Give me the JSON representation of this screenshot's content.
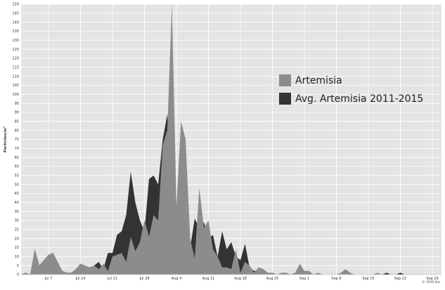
{
  "chart_data": {
    "type": "area",
    "ylabel": "Particles/m³",
    "ylim": [
      0,
      150
    ],
    "y_tick_step": 5,
    "grid": true,
    "legend_position": "right",
    "credit": "© 2016 Bai",
    "x_start": "Jul 1",
    "x_end": "Sep 30",
    "x_tick_labels": [
      "Jul 7",
      "Jul 14",
      "Jul 21",
      "Jul 28",
      "Aug 4",
      "Aug 11",
      "Aug 18",
      "Aug 25",
      "Sep 1",
      "Sep 8",
      "Sep 15",
      "Sep 22",
      "Sep 29"
    ],
    "x_tick_days": [
      6,
      13,
      20,
      27,
      34,
      41,
      48,
      55,
      62,
      69,
      76,
      83,
      90
    ],
    "categories_note": "x values are days in Jul 1 – Sep 30 (Jul 1 = 0)",
    "series": [
      {
        "name": "Avg. Artemisia 2011-2015",
        "color": "#333333",
        "x": [
          0,
          1,
          2,
          3,
          4,
          5,
          6,
          7,
          8,
          9,
          10,
          11,
          12,
          13,
          14,
          15,
          16,
          17,
          18,
          19,
          20,
          21,
          22,
          23,
          24,
          25,
          26,
          27,
          28,
          29,
          30,
          31,
          32,
          33,
          34,
          35,
          36,
          37,
          38,
          39,
          40,
          41,
          42,
          43,
          44,
          45,
          46,
          47,
          48,
          49,
          50,
          51,
          52,
          53,
          54,
          55,
          56,
          57,
          58,
          59,
          60,
          61,
          62,
          63,
          64,
          65,
          66,
          67,
          68,
          69,
          70,
          71,
          72,
          73,
          74,
          75,
          76,
          77,
          78,
          79,
          80,
          81,
          82,
          83,
          84,
          85,
          86,
          87,
          88,
          89,
          90
        ],
        "values": [
          0,
          1,
          0,
          14,
          5,
          8,
          11,
          12,
          7,
          2,
          1,
          1,
          3,
          6,
          5,
          4,
          5,
          7,
          3,
          12,
          12,
          22,
          24,
          33,
          57,
          40,
          30,
          24,
          53,
          55,
          50,
          75,
          89,
          41,
          35,
          28,
          24,
          15,
          31,
          26,
          29,
          20,
          22,
          10,
          24,
          14,
          18,
          10,
          8,
          17,
          4,
          2,
          2,
          1,
          0,
          0,
          0,
          0,
          0,
          0,
          1,
          1,
          2,
          1,
          0,
          0,
          0,
          0,
          0,
          0,
          0,
          0,
          0,
          0,
          0,
          0,
          0,
          0,
          0,
          0,
          1,
          0,
          0,
          1,
          0,
          0,
          0,
          0,
          0,
          0,
          0
        ]
      },
      {
        "name": "Artemisia",
        "color": "#8c8c8c",
        "x": [
          0,
          1,
          2,
          3,
          4,
          5,
          6,
          7,
          8,
          9,
          10,
          11,
          12,
          13,
          14,
          15,
          16,
          17,
          18,
          19,
          20,
          21,
          22,
          23,
          24,
          25,
          26,
          27,
          28,
          29,
          30,
          31,
          32,
          33,
          34,
          35,
          36,
          37,
          38,
          39,
          40,
          41,
          42,
          43,
          44,
          45,
          46,
          47,
          48,
          49,
          50,
          51,
          52,
          53,
          54,
          55,
          56,
          57,
          58,
          59,
          60,
          61,
          62,
          63,
          64,
          65,
          66,
          67,
          68,
          69,
          70,
          71,
          72,
          73,
          74,
          75,
          76,
          77,
          78,
          79,
          80,
          81,
          82,
          83,
          84,
          85,
          86,
          87,
          88,
          89,
          90
        ],
        "values": [
          0,
          1,
          0,
          14,
          5,
          8,
          11,
          12,
          7,
          2,
          1,
          1,
          3,
          6,
          5,
          4,
          5,
          3,
          6,
          2,
          10,
          11,
          12,
          7,
          21,
          13,
          18,
          30,
          21,
          33,
          30,
          72,
          80,
          150,
          38,
          85,
          75,
          20,
          9,
          48,
          26,
          30,
          14,
          10,
          4,
          4,
          3,
          14,
          1,
          7,
          5,
          1,
          4,
          3,
          1,
          1,
          0,
          1,
          1,
          0,
          1,
          6,
          2,
          2,
          0,
          1,
          0,
          0,
          0,
          0,
          1,
          3,
          1,
          0,
          0,
          0,
          0,
          0,
          1,
          0,
          0,
          0,
          0,
          0,
          0,
          0,
          0,
          0,
          0,
          0,
          0
        ]
      }
    ]
  }
}
